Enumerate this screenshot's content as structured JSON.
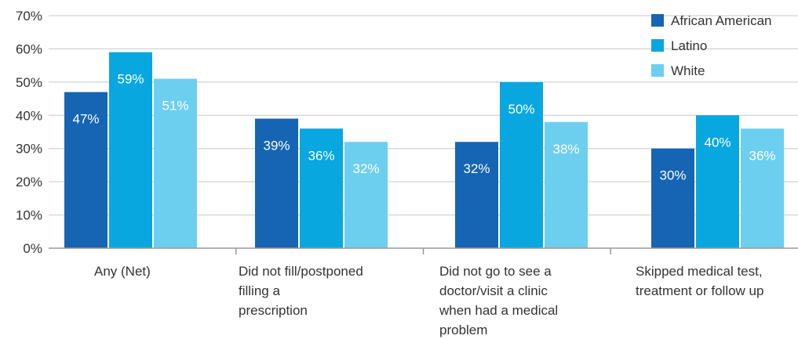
{
  "chart_data": {
    "type": "bar",
    "categories": [
      [
        "Any (Net)"
      ],
      [
        "Did not fill/postponed",
        "filling a",
        "prescription"
      ],
      [
        "Did not go to see a",
        "doctor/visit a clinic",
        "when had a medical",
        "problem"
      ],
      [
        "Skipped medical test,",
        "treatment or follow up"
      ]
    ],
    "series": [
      {
        "name": "African American",
        "values": [
          47,
          39,
          32,
          30
        ],
        "labels": [
          "47%",
          "39%",
          "32%",
          "30%"
        ],
        "color": "#1565b4",
        "label_color": "#ffffff"
      },
      {
        "name": "Latino",
        "values": [
          59,
          36,
          50,
          40
        ],
        "labels": [
          "59%",
          "36%",
          "50%",
          "40%"
        ],
        "color": "#08a7e0",
        "label_color": "#ffffff"
      },
      {
        "name": "White",
        "values": [
          51,
          32,
          38,
          36
        ],
        "labels": [
          "51%",
          "32%",
          "38%",
          "36%"
        ],
        "color": "#6dcff0",
        "label_color": "#ffffff"
      }
    ],
    "yticks": [
      "0%",
      "10%",
      "20%",
      "30%",
      "40%",
      "50%",
      "60%",
      "70%"
    ],
    "ylim": [
      0,
      70
    ],
    "grid": true,
    "legend_position": "top-right",
    "title": "",
    "xlabel": "",
    "ylabel": ""
  }
}
